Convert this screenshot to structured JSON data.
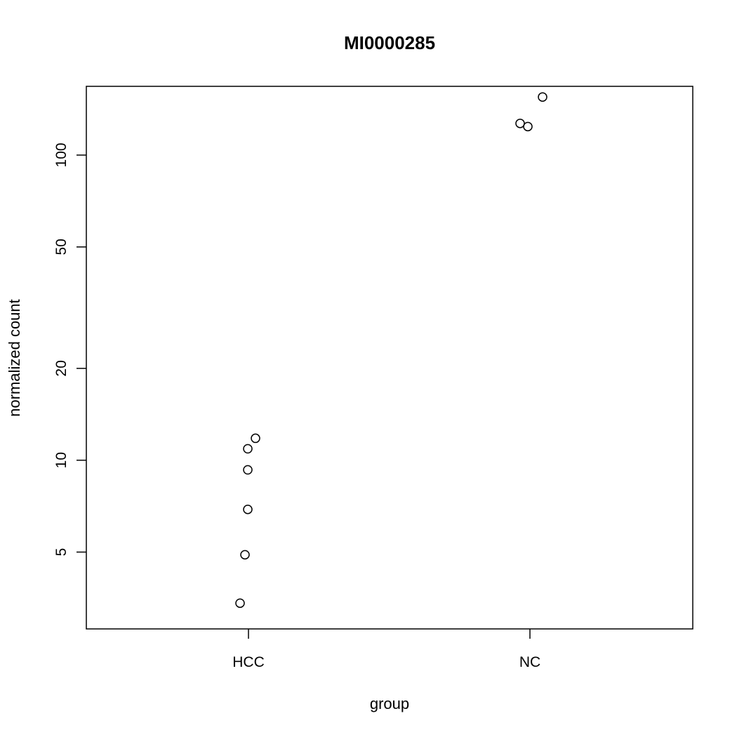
{
  "chart_data": {
    "type": "scatter",
    "title": "MI0000285",
    "xlabel": "group",
    "ylabel": "normalized count",
    "y_scale": "log",
    "ylim": [
      2.8,
      168
    ],
    "yticks": [
      "5",
      "10",
      "20",
      "50",
      "100"
    ],
    "ytick_values": [
      5,
      10,
      20,
      50,
      100
    ],
    "categories": [
      "HCC",
      "NC"
    ],
    "grid": false,
    "legend": "none",
    "points": [
      {
        "group": "HCC",
        "y": 3.4
      },
      {
        "group": "HCC",
        "y": 4.9
      },
      {
        "group": "HCC",
        "y": 6.9
      },
      {
        "group": "HCC",
        "y": 9.3
      },
      {
        "group": "HCC",
        "y": 10.9
      },
      {
        "group": "HCC",
        "y": 11.8
      },
      {
        "group": "NC",
        "y": 127
      },
      {
        "group": "NC",
        "y": 124
      },
      {
        "group": "NC",
        "y": 155
      }
    ]
  }
}
